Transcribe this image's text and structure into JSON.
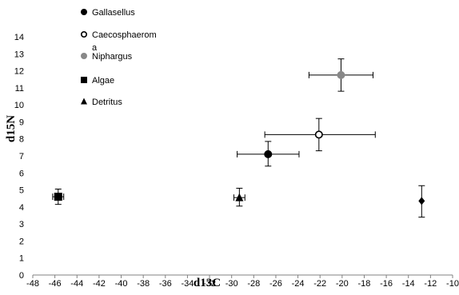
{
  "chart_data": {
    "type": "scatter",
    "xlabel": "d13C",
    "ylabel": "d15N",
    "xlim": [
      -48,
      -10
    ],
    "ylim": [
      0,
      14
    ],
    "x_ticks": [
      -48,
      -46,
      -44,
      -42,
      -40,
      -38,
      -36,
      -34,
      -32,
      -30,
      -28,
      -26,
      -24,
      -22,
      -20,
      -18,
      -16,
      -14,
      -12,
      -10
    ],
    "y_ticks": [
      0,
      1,
      2,
      3,
      4,
      5,
      6,
      7,
      8,
      9,
      10,
      11,
      12,
      13,
      14
    ],
    "grid": false,
    "legend_position": "top-left",
    "legend": [
      {
        "label_lines": [
          "Gallasellus"
        ],
        "marker": "filled-circle",
        "color": "#000000"
      },
      {
        "label_lines": [
          "Caecosphaerom",
          "a"
        ],
        "marker": "open-circle",
        "color": "#000000"
      },
      {
        "label_lines": [
          "Niphargus"
        ],
        "marker": "filled-circle",
        "color": "#888888"
      },
      {
        "label_lines": [
          "Algae"
        ],
        "marker": "square",
        "color": "#000000"
      },
      {
        "label_lines": [
          "Detritus"
        ],
        "marker": "triangle",
        "color": "#000000"
      }
    ],
    "points": [
      {
        "marker": "square",
        "color": "#000000",
        "x": -45.7,
        "y": 4.6,
        "xerr": [
          0.5,
          0.5
        ],
        "yerr": [
          0.45,
          0.45
        ]
      },
      {
        "marker": "triangle",
        "color": "#000000",
        "x": -29.3,
        "y": 4.55,
        "xerr": [
          0.5,
          0.5
        ],
        "yerr": [
          0.5,
          0.55
        ]
      },
      {
        "marker": "filled-circle",
        "color": "#000000",
        "x": -26.7,
        "y": 7.1,
        "xerr": [
          2.8,
          2.8
        ],
        "yerr": [
          0.7,
          0.75
        ]
      },
      {
        "marker": "open-circle",
        "color": "#000000",
        "x": -22.1,
        "y": 8.25,
        "xerr": [
          4.9,
          5.1
        ],
        "yerr": [
          0.95,
          0.95
        ]
      },
      {
        "marker": "filled-circle",
        "color": "#888888",
        "x": -20.1,
        "y": 11.75,
        "xerr": [
          2.9,
          2.9
        ],
        "yerr": [
          0.95,
          0.95
        ]
      },
      {
        "marker": "diamond",
        "color": "#000000",
        "x": -12.8,
        "y": 4.35,
        "xerr": [
          0,
          0
        ],
        "yerr": [
          0.95,
          0.9
        ]
      }
    ]
  }
}
